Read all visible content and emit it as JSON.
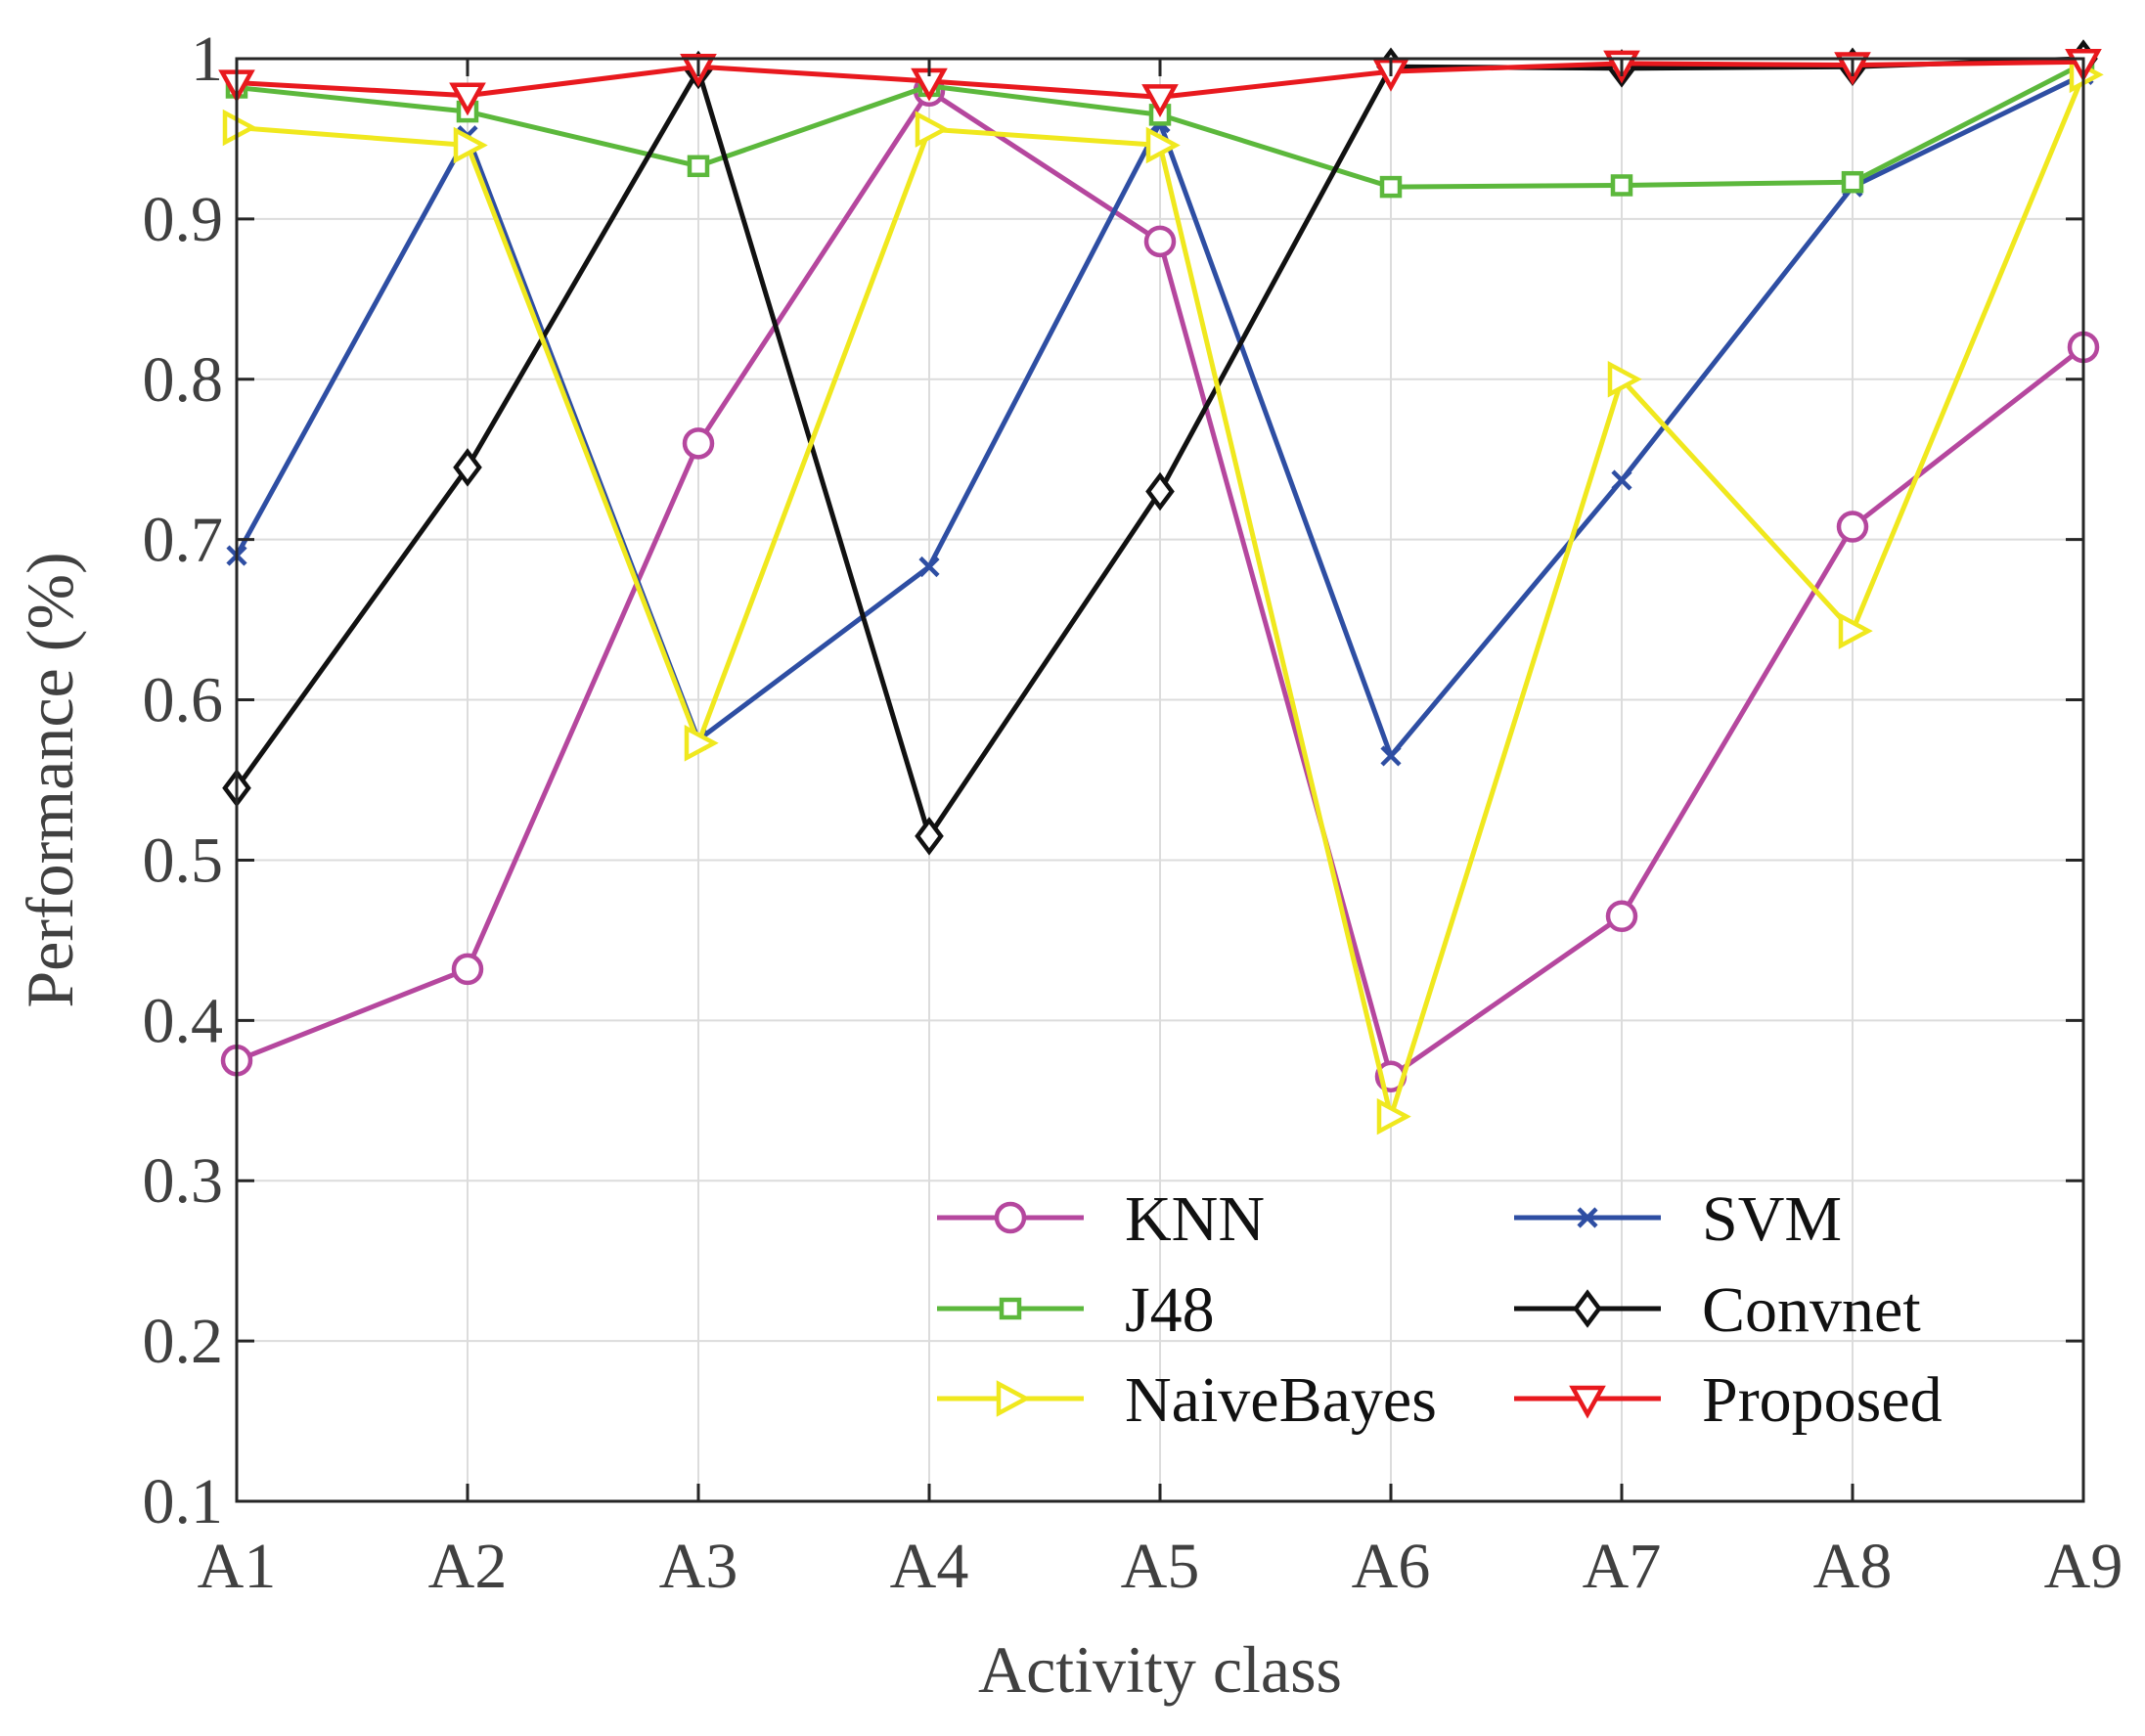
{
  "chart_data": {
    "type": "line",
    "xlabel": "Activity class",
    "ylabel": "Performance (%)",
    "ylim": [
      0.1,
      1.0
    ],
    "yticks": [
      "0.1",
      "0.2",
      "0.3",
      "0.4",
      "0.5",
      "0.6",
      "0.7",
      "0.8",
      "0.9",
      "1"
    ],
    "grid": true,
    "legend_position": "bottom-right",
    "categories": [
      "A1",
      "A2",
      "A3",
      "A4",
      "A5",
      "A6",
      "A7",
      "A8",
      "A9"
    ],
    "series": [
      {
        "name": "KNN",
        "color": "#b5479e",
        "marker": "circle",
        "values": [
          0.375,
          0.432,
          0.76,
          0.98,
          0.886,
          0.365,
          0.465,
          0.708,
          0.82
        ]
      },
      {
        "name": "SVM",
        "color": "#2e4ea3",
        "marker": "x",
        "values": [
          0.69,
          0.952,
          0.575,
          0.683,
          0.96,
          0.565,
          0.737,
          0.92,
          0.99
        ]
      },
      {
        "name": "J48",
        "color": "#5cb83c",
        "marker": "square",
        "values": [
          0.982,
          0.967,
          0.933,
          0.983,
          0.965,
          0.92,
          0.921,
          0.923,
          0.997
        ]
      },
      {
        "name": "Convnet",
        "color": "#111111",
        "marker": "diamond",
        "values": [
          0.545,
          0.745,
          0.993,
          0.515,
          0.73,
          0.995,
          0.994,
          0.995,
          1.0
        ]
      },
      {
        "name": "NaiveBayes",
        "color": "#f0e81e",
        "marker": "triangle-right",
        "values": [
          0.957,
          0.946,
          0.573,
          0.956,
          0.946,
          0.34,
          0.8,
          0.643,
          0.99
        ]
      },
      {
        "name": "Proposed",
        "color": "#e8191e",
        "marker": "triangle-down",
        "values": [
          0.985,
          0.977,
          0.995,
          0.986,
          0.976,
          0.992,
          0.997,
          0.996,
          0.998
        ]
      }
    ]
  }
}
